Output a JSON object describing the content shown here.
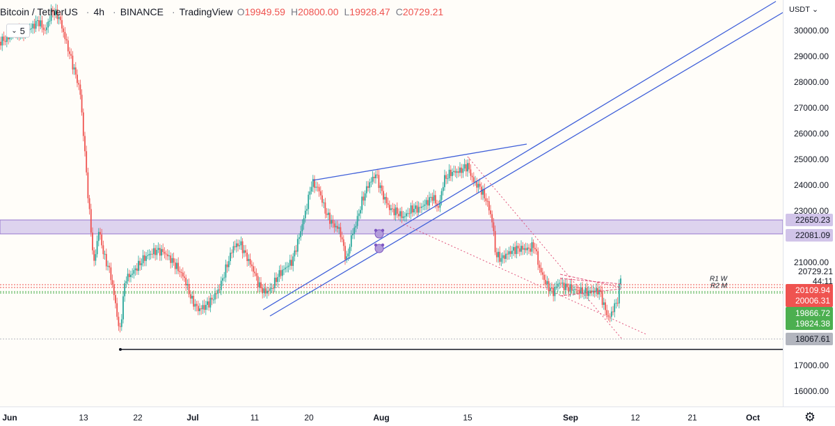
{
  "legend": {
    "symbol": "Bitcoin / TetherUS",
    "interval": "4h",
    "exchange": "BINANCE",
    "source": "TradingView",
    "open_label": "O",
    "open": "19949.59",
    "high_label": "H",
    "high": "20800.00",
    "low_label": "L",
    "low": "19928.47",
    "close_label": "C",
    "close": "20729.21",
    "indicators_count": "5"
  },
  "price_axis": {
    "currency": "USDT",
    "ticks": [
      "30000.00",
      "29000.00",
      "28000.00",
      "27000.00",
      "26000.00",
      "25000.00",
      "24000.00",
      "23000.00",
      "21000.00",
      "17000.00",
      "16000.00"
    ],
    "labels": [
      {
        "text": "22650.23",
        "bg": "#d1c4e9",
        "fg": "#131722"
      },
      {
        "text": "22081.09",
        "bg": "#d1c4e9",
        "fg": "#131722"
      },
      {
        "text": "20109.94",
        "bg": "#ef5350",
        "fg": "#ffffff"
      },
      {
        "text": "20006.31",
        "bg": "#ef5350",
        "fg": "#ffffff"
      },
      {
        "text": "19866.72",
        "bg": "#4caf50",
        "fg": "#ffffff"
      },
      {
        "text": "19824.38",
        "bg": "#4caf50",
        "fg": "#ffffff"
      },
      {
        "text": "18067.61",
        "bg": "#b2b5be",
        "fg": "#131722"
      }
    ],
    "current_price": "20729.21",
    "countdown": "44:11",
    "pivot_r1": "R1 W",
    "pivot_r2": "R2 M"
  },
  "time_axis": {
    "labels": [
      {
        "text": "Jun",
        "bold": true
      },
      {
        "text": "13",
        "bold": false
      },
      {
        "text": "22",
        "bold": false
      },
      {
        "text": "Jul",
        "bold": true
      },
      {
        "text": "11",
        "bold": false
      },
      {
        "text": "20",
        "bold": false
      },
      {
        "text": "Aug",
        "bold": true
      },
      {
        "text": "15",
        "bold": false
      },
      {
        "text": "Sep",
        "bold": true
      },
      {
        "text": "12",
        "bold": false
      },
      {
        "text": "21",
        "bold": false
      },
      {
        "text": "Oct",
        "bold": true
      }
    ]
  },
  "colors": {
    "up": "#26a69a",
    "down": "#ef5350",
    "candle_mix": "#b0506a",
    "trendline": "#3f5fd9",
    "zone": "#d1c4e9",
    "support": "#131722",
    "dotted": "#e0527a"
  },
  "icons": {
    "settings": "gear-icon",
    "alert": "alarm-clock-icon"
  }
}
